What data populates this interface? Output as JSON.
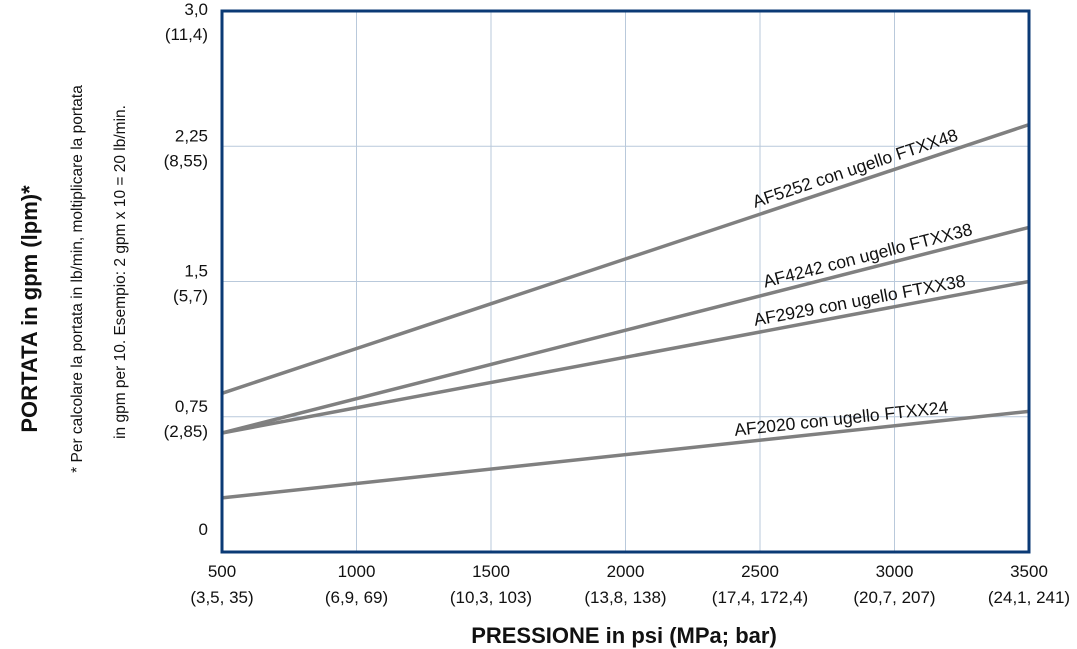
{
  "chart_data": {
    "type": "line",
    "title": "",
    "xlabel": "PRESSIONE in psi (MPa; bar)",
    "ylabel": "PORTATA in gpm (lpm)*",
    "note_line1": "* Per calcolare la portata in lb/min, moltiplicare la portata",
    "note_line2": "in gpm per 10. Esempio: 2 gpm x 10 = 20 lb/min.",
    "xlim": [
      500,
      3500
    ],
    "ylim": [
      0,
      3.0
    ],
    "grid": true,
    "x_ticks": [
      {
        "value": 500,
        "label": "500",
        "sublabel": "(3,5, 35)"
      },
      {
        "value": 1000,
        "label": "1000",
        "sublabel": "(6,9, 69)"
      },
      {
        "value": 1500,
        "label": "1500",
        "sublabel": "(10,3, 103)"
      },
      {
        "value": 2000,
        "label": "2000",
        "sublabel": "(13,8, 138)"
      },
      {
        "value": 2500,
        "label": "2500",
        "sublabel": "(17,4, 172,4)"
      },
      {
        "value": 3000,
        "label": "3000",
        "sublabel": "(20,7, 207)"
      },
      {
        "value": 3500,
        "label": "3500",
        "sublabel": "(24,1, 241)"
      }
    ],
    "y_ticks": [
      {
        "value": 3.0,
        "label": "3,0",
        "sublabel": "(11,4)"
      },
      {
        "value": 2.25,
        "label": "2,25",
        "sublabel": "(8,55)"
      },
      {
        "value": 1.5,
        "label": "1,5",
        "sublabel": "(5,7)"
      },
      {
        "value": 0.75,
        "label": "0,75",
        "sublabel": "(2,85)"
      },
      {
        "value": 0,
        "label": "0",
        "sublabel": ""
      }
    ],
    "series": [
      {
        "name": "AF5252 con ugello FTXX48",
        "x": [
          500,
          3500
        ],
        "y": [
          0.88,
          2.37
        ]
      },
      {
        "name": "AF4242 con ugello FTXX38",
        "x": [
          500,
          3500
        ],
        "y": [
          0.66,
          1.8
        ]
      },
      {
        "name": "AF2929 con ugello FTXX38",
        "x": [
          500,
          3500
        ],
        "y": [
          0.66,
          1.5
        ]
      },
      {
        "name": "AF2020 con ugello FTXX24",
        "x": [
          500,
          3500
        ],
        "y": [
          0.3,
          0.78
        ]
      }
    ],
    "colors": {
      "frame": "#0b3a75",
      "grid": "#b9c9db",
      "line": "#808080",
      "text": "#111111"
    }
  }
}
